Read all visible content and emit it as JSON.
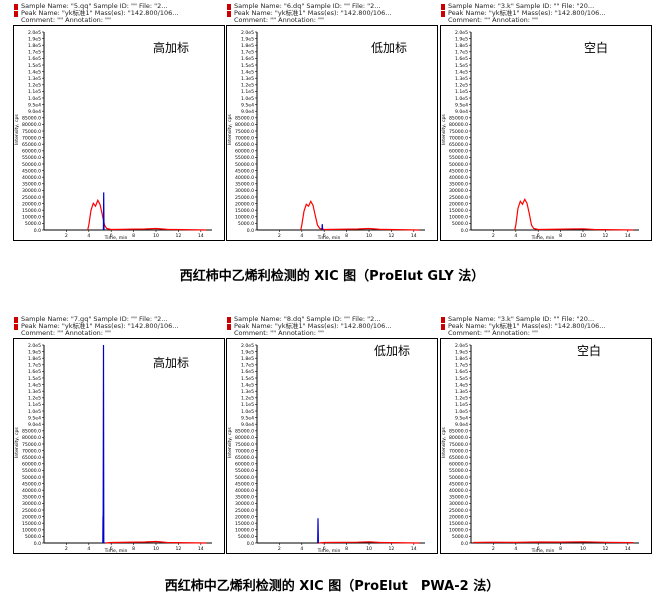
{
  "header_lines": [
    [
      "Sample Name: \"5.qq\"  Sample ID: \"\"  File: \"2...",
      "Peak Name: \"yk标准1\"  Mass(es): \"142.800/106...",
      "Comment: \"\"  Annotation: \"\""
    ],
    [
      "Sample Name: \"6.dq\"  Sample ID: \"\"  File: \"2...",
      "Peak Name: \"yk标准1\"  Mass(es): \"142.800/106...",
      "Comment: \"\"  Annotation: \"\""
    ],
    [
      "Sample Name: \"3.k\"  Sample ID: \"\"  File: \"20...",
      "Peak Name: \"yk标准1\"  Mass(es): \"142.800/106...",
      "Comment: \"\"  Annotation: \"\""
    ],
    [
      "Sample Name: \"7.gq\"  Sample ID: \"\"  File: \"2...",
      "Peak Name: \"yk标准1\"  Mass(es): \"142.800/106...",
      "Comment: \"\"  Annotation: \"\""
    ],
    [
      "Sample Name: \"8.dq\"  Sample ID: \"\"  File: \"2...",
      "Peak Name: \"yk标准1\"  Mass(es): \"142.800/106...",
      "Comment: \"\"  Annotation: \"\""
    ],
    [
      "Sample Name: \"3.k\"  Sample ID: \"\"  File: \"20...",
      "Peak Name: \"yk标准1\"  Mass(es): \"142.800/106...",
      "Comment: \"\"  Annotation: \"\""
    ]
  ],
  "panel_labels": [
    "高加标",
    "低加标",
    "空白",
    "高加标",
    "低加标",
    "空白"
  ],
  "captions": [
    "西红柿中乙烯利检测的 XIC 图（ProElut GLY 法）",
    "西红柿中乙烯利检测的 XIC 图（ProElut　PWA-2 法）"
  ],
  "axes": {
    "ylabel": "Intensity, cps",
    "xlabel": "Time, min",
    "x_ticks": [
      "2",
      "4",
      "6",
      "8",
      "10",
      "12",
      "14"
    ],
    "y_ticks": [
      "0.0",
      "5000.0",
      "10000.0",
      "15000.0",
      "20000.0",
      "25000.0",
      "30000.0",
      "35000.0",
      "40000.0",
      "45000.0",
      "50000.0",
      "55000.0",
      "60000.0",
      "65000.0",
      "70000.0",
      "75000.0",
      "80000.0",
      "85000.0",
      "9.0e4",
      "9.5e4",
      "1.0e5",
      "1.1e5",
      "1.2e5",
      "1.3e5",
      "1.4e5",
      "1.5e5",
      "1.6e5",
      "1.7e5",
      "1.8e5",
      "1.9e5",
      "2.0e5"
    ]
  },
  "colors": {
    "red_trace": "#ff0000",
    "blue_trace": "#0000cc",
    "marker": "#cc0000"
  },
  "chart_data": [
    {
      "type": "line",
      "xlabel": "Time, min",
      "ylabel": "Intensity, cps",
      "xlim": [
        0,
        15
      ],
      "ylim": [
        0,
        200000
      ],
      "series": [
        {
          "color": "#ff0000",
          "points": [
            [
              3.9,
              0
            ],
            [
              4.0,
              5000
            ],
            [
              4.2,
              20000
            ],
            [
              4.4,
              27000
            ],
            [
              4.6,
              24000
            ],
            [
              4.8,
              30000
            ],
            [
              5.0,
              26000
            ],
            [
              5.2,
              16000
            ],
            [
              5.4,
              5000
            ],
            [
              5.6,
              1500
            ],
            [
              6.0,
              500
            ],
            [
              9.0,
              1000
            ],
            [
              10.0,
              1500
            ],
            [
              11.0,
              600
            ],
            [
              14.5,
              0
            ]
          ]
        },
        {
          "color": "#0000cc",
          "points": [
            [
              5.3,
              0
            ],
            [
              5.33,
              38000
            ],
            [
              5.36,
              0
            ]
          ]
        }
      ]
    },
    {
      "type": "line",
      "xlabel": "Time, min",
      "ylabel": "Intensity, cps",
      "xlim": [
        0,
        15
      ],
      "ylim": [
        0,
        200000
      ],
      "series": [
        {
          "color": "#ff0000",
          "points": [
            [
              3.9,
              0
            ],
            [
              4.0,
              5000
            ],
            [
              4.2,
              19000
            ],
            [
              4.4,
              26000
            ],
            [
              4.6,
              24000
            ],
            [
              4.8,
              29000
            ],
            [
              5.0,
              25000
            ],
            [
              5.2,
              15000
            ],
            [
              5.4,
              5000
            ],
            [
              5.6,
              1500
            ],
            [
              6.0,
              500
            ],
            [
              9.0,
              1000
            ],
            [
              10.0,
              1500
            ],
            [
              11.0,
              600
            ],
            [
              14.5,
              0
            ]
          ]
        },
        {
          "color": "#0000cc",
          "points": [
            [
              5.8,
              0
            ],
            [
              5.83,
              6000
            ],
            [
              5.86,
              0
            ]
          ]
        }
      ]
    },
    {
      "type": "line",
      "xlabel": "Time, min",
      "ylabel": "Intensity, cps",
      "xlim": [
        0,
        15
      ],
      "ylim": [
        0,
        200000
      ],
      "series": [
        {
          "color": "#ff0000",
          "points": [
            [
              3.9,
              0
            ],
            [
              4.0,
              5000
            ],
            [
              4.2,
              22000
            ],
            [
              4.4,
              29000
            ],
            [
              4.6,
              26000
            ],
            [
              4.8,
              31000
            ],
            [
              5.0,
              27000
            ],
            [
              5.2,
              17000
            ],
            [
              5.4,
              5000
            ],
            [
              5.6,
              1500
            ],
            [
              6.0,
              500
            ],
            [
              9.0,
              1000
            ],
            [
              10.0,
              1200
            ],
            [
              11.0,
              500
            ],
            [
              14.5,
              0
            ]
          ]
        }
      ]
    },
    {
      "type": "line",
      "xlabel": "Time, min",
      "ylabel": "Intensity, cps",
      "xlim": [
        0,
        15
      ],
      "ylim": [
        0,
        200000
      ],
      "series": [
        {
          "color": "#0000cc",
          "points": [
            [
              5.28,
              0
            ],
            [
              5.31,
              200000
            ],
            [
              5.34,
              0
            ]
          ]
        },
        {
          "color": "#0000cc",
          "points": [
            [
              5.25,
              0
            ],
            [
              5.27,
              27000
            ],
            [
              5.29,
              0
            ]
          ]
        },
        {
          "color": "#ff0000",
          "points": [
            [
              5.5,
              0
            ],
            [
              6.0,
              500
            ],
            [
              9.0,
              1000
            ],
            [
              10.0,
              1500
            ],
            [
              11.0,
              500
            ],
            [
              14.5,
              0
            ]
          ]
        }
      ]
    },
    {
      "type": "line",
      "xlabel": "Time, min",
      "ylabel": "Intensity, cps",
      "xlim": [
        0,
        15
      ],
      "ylim": [
        0,
        200000
      ],
      "series": [
        {
          "color": "#0000cc",
          "points": [
            [
              5.42,
              0
            ],
            [
              5.45,
              25000
            ],
            [
              5.48,
              0
            ]
          ]
        },
        {
          "color": "#ff0000",
          "points": [
            [
              5.5,
              0
            ],
            [
              6.0,
              500
            ],
            [
              9.0,
              800
            ],
            [
              10.0,
              1200
            ],
            [
              11.0,
              500
            ],
            [
              14.5,
              0
            ]
          ]
        }
      ]
    },
    {
      "type": "line",
      "xlabel": "Time, min",
      "ylabel": "Intensity, cps",
      "xlim": [
        0,
        15
      ],
      "ylim": [
        0,
        200000
      ],
      "series": [
        {
          "color": "#ff0000",
          "points": [
            [
              0.2,
              500
            ],
            [
              2,
              800
            ],
            [
              4,
              600
            ],
            [
              6,
              1000
            ],
            [
              8,
              900
            ],
            [
              10,
              1200
            ],
            [
              12,
              700
            ],
            [
              14.5,
              400
            ]
          ]
        }
      ]
    }
  ]
}
